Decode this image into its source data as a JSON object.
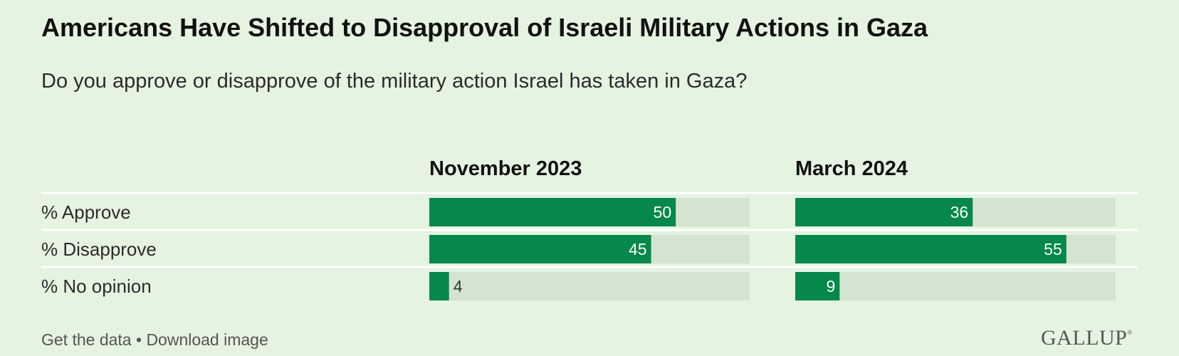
{
  "title": "Americans Have Shifted to Disapproval of Israeli Military Actions in Gaza",
  "subtitle": "Do you approve or disapprove of the military action Israel has taken in Gaza?",
  "chart_data": {
    "type": "bar",
    "orientation": "horizontal",
    "categories": [
      "% Approve",
      "% Disapprove",
      "% No opinion"
    ],
    "series": [
      {
        "name": "November 2023",
        "values": [
          50,
          45,
          4
        ]
      },
      {
        "name": "March 2024",
        "values": [
          36,
          55,
          9
        ]
      }
    ],
    "xlim": [
      0,
      65
    ],
    "grid": false,
    "legend": "none",
    "colors": {
      "bar": "#05884a",
      "track": "#d4e4d1",
      "divider": "#ffffff"
    }
  },
  "footer": {
    "get_data": "Get the data",
    "separator": "•",
    "download": "Download image",
    "logo": "GALLUP",
    "logo_mark": "®"
  }
}
